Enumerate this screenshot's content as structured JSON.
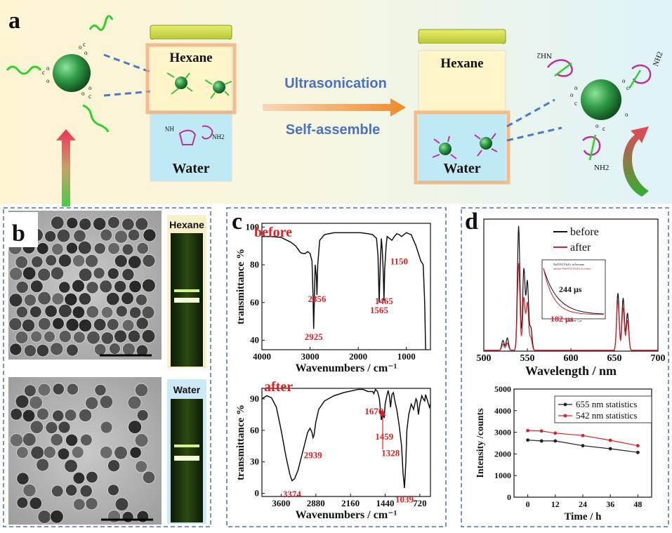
{
  "panel_a": {
    "label": "a",
    "jar_left": {
      "top_phase": "Hexane",
      "bottom_phase": "Water"
    },
    "jar_right": {
      "top_phase": "Hexane",
      "bottom_phase": "Water"
    },
    "process_top": "Ultrasonication",
    "process_bottom": "Self-assemble",
    "nh2_label": "NH2",
    "nh2_label_rev": "HN"
  },
  "panel_b": {
    "label": "b",
    "vial_top": "Hexane",
    "vial_bottom": "Water"
  },
  "panel_c": {
    "label": "c",
    "colors": {
      "line": "#111111",
      "label": "#e02020"
    },
    "before": {
      "tag": "before",
      "ylabel": "transmittance %",
      "xlabel": "Wavenumbers / cm⁻¹",
      "xlim": [
        4000,
        500
      ],
      "ylim": [
        35,
        102
      ],
      "xticks": [
        4000,
        3000,
        2000,
        1000
      ],
      "yticks": [
        40,
        60,
        80,
        100
      ],
      "points": [
        [
          4000,
          95
        ],
        [
          3800,
          95
        ],
        [
          3600,
          94.5
        ],
        [
          3400,
          92
        ],
        [
          3300,
          90
        ],
        [
          3200,
          86.5
        ],
        [
          3150,
          86
        ],
        [
          3100,
          86
        ],
        [
          3050,
          87
        ],
        [
          3000,
          86
        ],
        [
          2960,
          82
        ],
        [
          2940,
          65
        ],
        [
          2925,
          46
        ],
        [
          2912,
          60
        ],
        [
          2895,
          80
        ],
        [
          2870,
          74
        ],
        [
          2856,
          64
        ],
        [
          2840,
          80
        ],
        [
          2800,
          93
        ],
        [
          2700,
          96
        ],
        [
          2500,
          97
        ],
        [
          2300,
          97
        ],
        [
          2100,
          97
        ],
        [
          1950,
          97
        ],
        [
          1800,
          96.5
        ],
        [
          1700,
          96
        ],
        [
          1620,
          94
        ],
        [
          1590,
          85
        ],
        [
          1565,
          60
        ],
        [
          1540,
          82
        ],
        [
          1520,
          94
        ],
        [
          1500,
          88
        ],
        [
          1480,
          76
        ],
        [
          1465,
          61
        ],
        [
          1450,
          78
        ],
        [
          1420,
          90
        ],
        [
          1400,
          95
        ],
        [
          1350,
          94
        ],
        [
          1300,
          93
        ],
        [
          1250,
          95
        ],
        [
          1200,
          96.5
        ],
        [
          1150,
          96
        ],
        [
          1100,
          95
        ],
        [
          1050,
          96
        ],
        [
          1000,
          97
        ],
        [
          950,
          96.5
        ],
        [
          900,
          96
        ],
        [
          850,
          93
        ],
        [
          800,
          90
        ],
        [
          750,
          86
        ],
        [
          700,
          82
        ],
        [
          650,
          80
        ],
        [
          620,
          60
        ],
        [
          600,
          35
        ]
      ],
      "labels": [
        {
          "text": "2925",
          "x": 2925,
          "y": 44
        },
        {
          "text": "2856",
          "x": 2856,
          "y": 64
        },
        {
          "text": "1565",
          "x": 1565,
          "y": 58
        },
        {
          "text": "1465",
          "x": 1465,
          "y": 63
        },
        {
          "text": "1150",
          "x": 1150,
          "y": 84
        }
      ]
    },
    "after": {
      "tag": "after",
      "ylabel": "transmittance %",
      "xlabel": "Wavenumbers / cm⁻¹",
      "xlim": [
        4000,
        500
      ],
      "ylim": [
        -3,
        100
      ],
      "xticks": [
        3600,
        2880,
        2160,
        1440,
        720
      ],
      "yticks": [
        0,
        30,
        60,
        90
      ],
      "points": [
        [
          4000,
          90
        ],
        [
          3900,
          93
        ],
        [
          3800,
          91
        ],
        [
          3700,
          82
        ],
        [
          3600,
          60
        ],
        [
          3500,
          35
        ],
        [
          3420,
          18
        ],
        [
          3374,
          12
        ],
        [
          3320,
          14
        ],
        [
          3250,
          22
        ],
        [
          3150,
          40
        ],
        [
          3050,
          58
        ],
        [
          3000,
          62
        ],
        [
          2960,
          58
        ],
        [
          2939,
          53
        ],
        [
          2920,
          55
        ],
        [
          2880,
          68
        ],
        [
          2820,
          80
        ],
        [
          2700,
          88
        ],
        [
          2500,
          93
        ],
        [
          2300,
          96
        ],
        [
          2100,
          98
        ],
        [
          2000,
          99
        ],
        [
          1900,
          99
        ],
        [
          1800,
          97
        ],
        [
          1700,
          97
        ],
        [
          1676,
          95
        ],
        [
          1640,
          99
        ],
        [
          1600,
          97
        ],
        [
          1560,
          90
        ],
        [
          1520,
          70
        ],
        [
          1490,
          75
        ],
        [
          1459,
          72
        ],
        [
          1440,
          85
        ],
        [
          1410,
          92
        ],
        [
          1380,
          98
        ],
        [
          1350,
          92
        ],
        [
          1328,
          82
        ],
        [
          1300,
          94
        ],
        [
          1270,
          96
        ],
        [
          1240,
          88
        ],
        [
          1200,
          80
        ],
        [
          1150,
          65
        ],
        [
          1100,
          45
        ],
        [
          1070,
          20
        ],
        [
          1039,
          5
        ],
        [
          1010,
          30
        ],
        [
          990,
          60
        ],
        [
          950,
          75
        ],
        [
          900,
          85
        ],
        [
          850,
          80
        ],
        [
          800,
          90
        ],
        [
          780,
          88
        ],
        [
          750,
          75
        ],
        [
          720,
          85
        ],
        [
          680,
          93
        ],
        [
          650,
          90
        ],
        [
          620,
          88
        ],
        [
          600,
          94
        ],
        [
          560,
          88
        ],
        [
          520,
          82
        ],
        [
          500,
          85
        ]
      ],
      "labels": [
        {
          "text": "3374",
          "x": 3374,
          "y": 3
        },
        {
          "text": "2939",
          "x": 2939,
          "y": 40
        },
        {
          "text": "1676",
          "x": 1676,
          "y": 82
        },
        {
          "text": "1459",
          "x": 1459,
          "y": 58
        },
        {
          "text": "1328",
          "x": 1328,
          "y": 42
        },
        {
          "text": "1039",
          "x": 1039,
          "y": -2
        }
      ]
    }
  },
  "panel_d": {
    "label": "d",
    "spectrum": {
      "xlabel": "Wavelength / nm",
      "xlim": [
        500,
        700
      ],
      "xticks": [
        500,
        550,
        600,
        650,
        700
      ],
      "ymax": 100,
      "legend": [
        "before",
        "after"
      ],
      "colors": {
        "before": "#111111",
        "after": "#e0202a"
      },
      "before_peaks": [
        [
          522,
          8
        ],
        [
          527,
          10
        ],
        [
          540,
          100
        ],
        [
          546,
          65
        ],
        [
          550,
          55
        ],
        [
          554,
          18
        ],
        [
          654,
          46
        ],
        [
          660,
          42
        ],
        [
          665,
          30
        ]
      ],
      "after_peaks": [
        [
          522,
          5
        ],
        [
          527,
          6
        ],
        [
          540,
          70
        ],
        [
          546,
          42
        ],
        [
          550,
          38
        ],
        [
          554,
          10
        ],
        [
          654,
          40
        ],
        [
          660,
          34
        ],
        [
          665,
          24
        ]
      ],
      "inset": {
        "legend_1": "NaYF4:Yb,Er in hexane",
        "legend_2": "amino-NaYF4:Yb,Er in water",
        "value_1": "244 μs",
        "value_2": "182 μs",
        "xlabel": "Lifetime / μs"
      }
    },
    "stats": {
      "xlabel": "Time / h",
      "ylabel": "Intensity /counts",
      "xlim": [
        -6,
        54
      ],
      "ylim": [
        0,
        5000
      ],
      "xticks": [
        0,
        12,
        24,
        36,
        48
      ],
      "yticks": [
        0,
        1000,
        2000,
        3000,
        4000,
        5000
      ],
      "series": [
        {
          "name": "655 nm statistics",
          "color": "#222222",
          "x": [
            0,
            6,
            12,
            24,
            36,
            48
          ],
          "values": [
            2640,
            2600,
            2600,
            2380,
            2240,
            2070
          ]
        },
        {
          "name": "542 nm statistics",
          "color": "#e0202a",
          "x": [
            0,
            6,
            12,
            24,
            36,
            48
          ],
          "values": [
            3080,
            3060,
            2960,
            2850,
            2630,
            2380
          ]
        }
      ]
    }
  }
}
